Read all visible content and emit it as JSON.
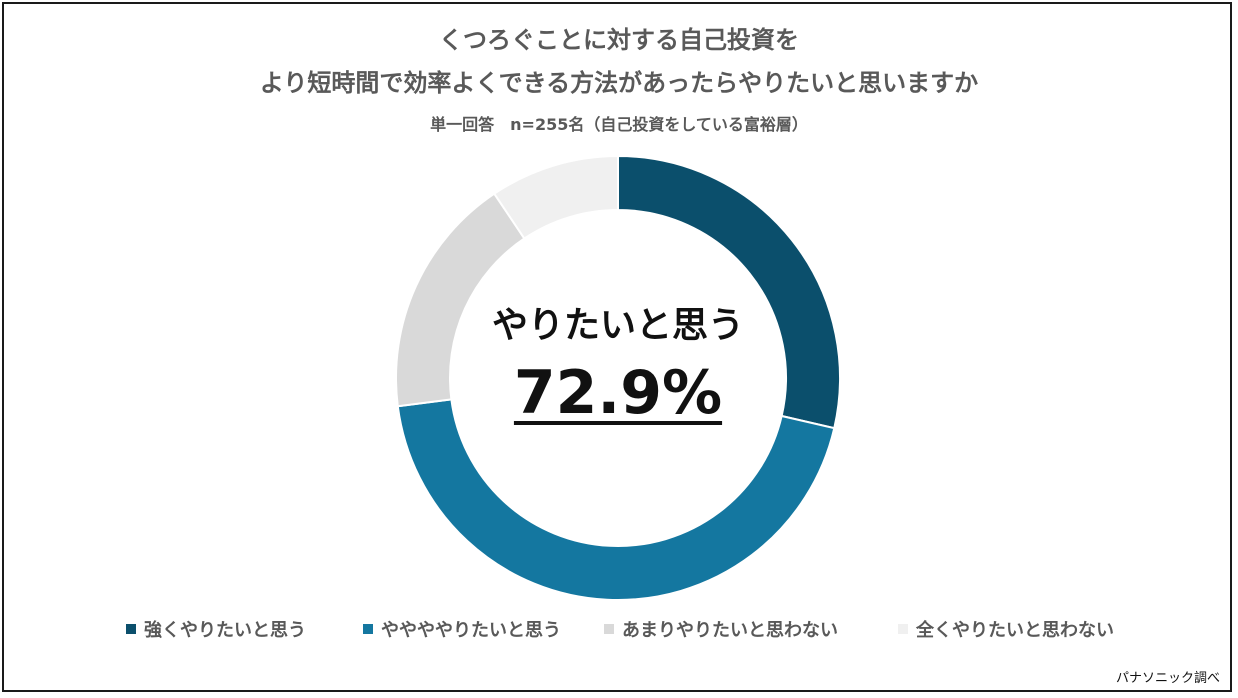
{
  "chart_data": {
    "type": "pie",
    "title": "くつろぐことに対する自己投資を",
    "title_line2": "より短時間で効率よくできる方法があったらやりたいと思いますか",
    "subtitle": "単一回答　n=255名（自己投資をしている富裕層）",
    "categories": [
      "強くやりたいと思う",
      "ややややりたいと思う",
      "あまりやりたいと思わない",
      "全くやりたいと思わない"
    ],
    "values": [
      28.6,
      44.3,
      17.6,
      9.4
    ],
    "colors": [
      "#0b4f6c",
      "#1477a0",
      "#d9d9d9",
      "#f0f0f0"
    ],
    "donut": true,
    "center_label": "やりたいと思う",
    "center_value": "72.9%",
    "legend_position": "bottom"
  },
  "source": "パナソニック調べ"
}
